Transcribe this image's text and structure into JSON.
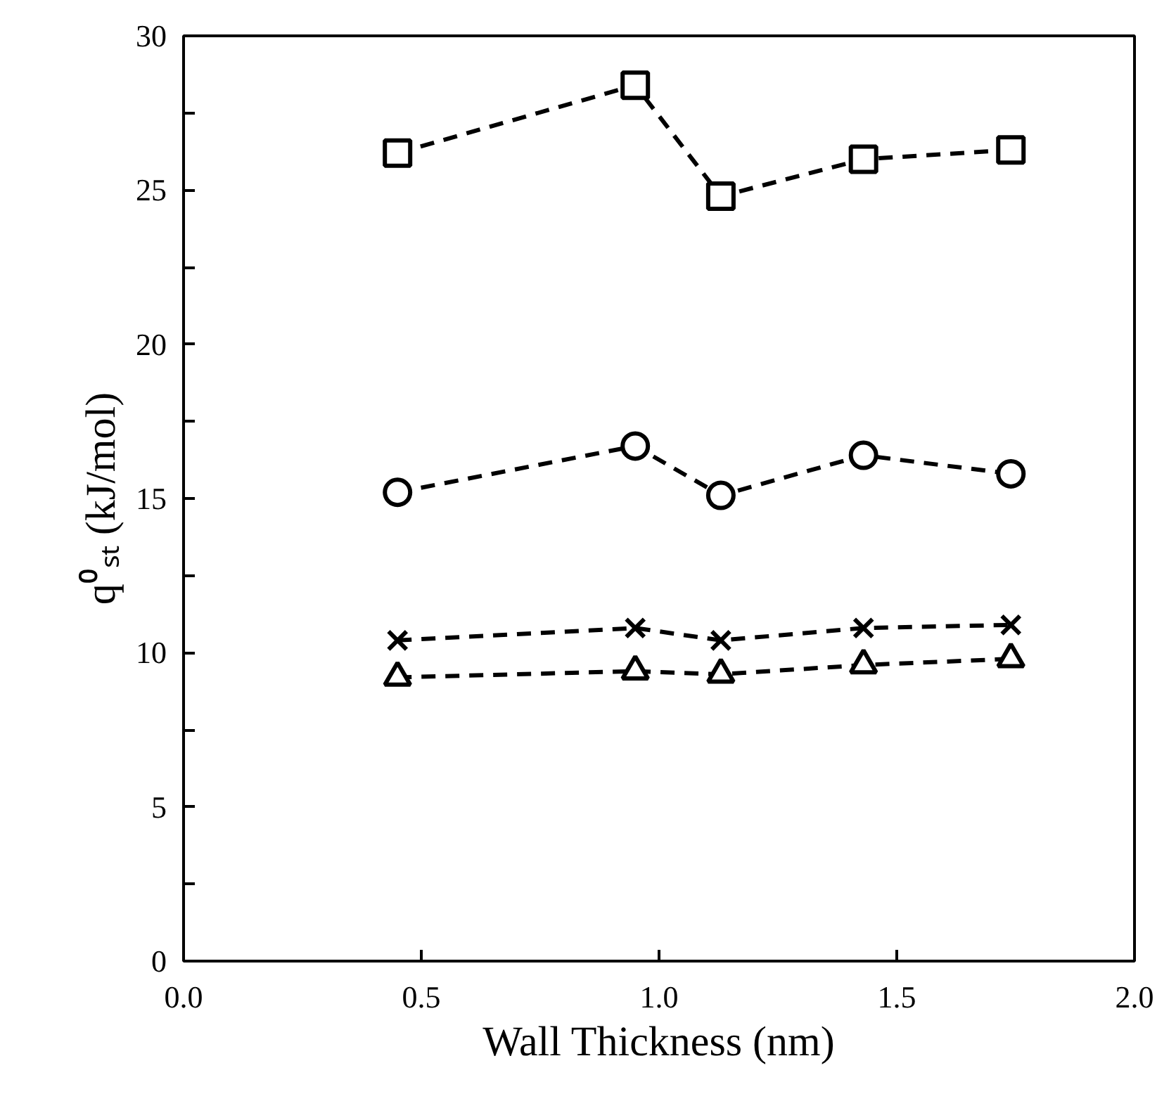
{
  "chart_data": {
    "type": "line",
    "xlabel": "Wall Thickness (nm)",
    "ylabel": "q⁰ₛₜ (kJ/mol)",
    "line_style": "dashed",
    "xlim": [
      0,
      2
    ],
    "ylim": [
      0,
      30
    ],
    "xticks": [
      {
        "value": 0,
        "label": "0.0"
      },
      0.5,
      {
        "value": 1,
        "label": "1.0"
      },
      1.5,
      {
        "value": 2,
        "label": "2.0"
      }
    ],
    "yticks": [
      0,
      {
        "value": 2.5,
        "label": null
      },
      5,
      {
        "value": 7.5,
        "label": null
      },
      10,
      {
        "value": 12.5,
        "label": null
      },
      15,
      {
        "value": 17.5,
        "label": null
      },
      20,
      {
        "value": 22.5,
        "label": null
      },
      25,
      {
        "value": 27.5,
        "label": null
      },
      30
    ],
    "x": [
      0.45,
      0.95,
      1.13,
      1.43,
      1.74
    ],
    "series": [
      {
        "color": "#000000",
        "marker": "square",
        "values": [
          26.2,
          28.4,
          24.8,
          26.0,
          26.3
        ]
      },
      {
        "color": "#000000",
        "marker": "circle",
        "values": [
          15.2,
          16.7,
          15.1,
          16.4,
          15.8
        ]
      },
      {
        "color": "#000000",
        "marker": "cross",
        "values": [
          10.4,
          10.8,
          10.4,
          10.8,
          10.9
        ]
      },
      {
        "color": "#000000",
        "marker": "triangle",
        "values": [
          9.2,
          9.4,
          9.3,
          9.6,
          9.8
        ]
      }
    ]
  }
}
